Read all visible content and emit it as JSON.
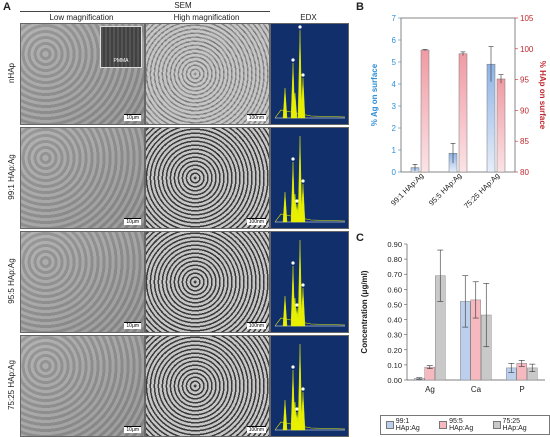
{
  "panel_a": {
    "letter": "A",
    "sem_header": "SEM",
    "col_headers": [
      "Low magnification",
      "High magnification",
      "EDX"
    ],
    "rows": [
      {
        "label": "nHAp",
        "sb_low": "10μm",
        "sb_high": "100nm",
        "inset": "PMMA"
      },
      {
        "label": "99:1 HAp:Ag",
        "sb_low": "10μm",
        "sb_high": "100nm"
      },
      {
        "label": "95:5 HAp:Ag",
        "sb_low": "10μm",
        "sb_high": "100nm"
      },
      {
        "label": "75:25 HAp:Ag",
        "sb_low": "10μm",
        "sb_high": "100nm"
      }
    ]
  },
  "panel_b": {
    "letter": "B"
  },
  "panel_c": {
    "letter": "C"
  },
  "colors": {
    "ag_axis": "#2f8fd8",
    "hap_axis": "#c0282f",
    "s1": "#bcd0ee",
    "s2": "#f5b9bf",
    "s3": "#c9c9c9",
    "edx_bg": "#11306b",
    "edx_peak": "#e8f000"
  },
  "chart_data": [
    {
      "type": "bar",
      "categories": [
        "99:1 HAp:Ag",
        "95:5 HAp:Ag",
        "75:25 HAp:Ag"
      ],
      "ylabel": "% Ag on surface",
      "y2label": "% HAp on surface",
      "ylim": [
        0,
        7
      ],
      "y2lim": [
        80,
        105
      ],
      "yticks": [
        0,
        1,
        2,
        3,
        4,
        5,
        6,
        7
      ],
      "y2ticks": [
        80,
        85,
        90,
        95,
        100,
        105
      ],
      "series": [
        {
          "axis": "left",
          "values": [
            0.2,
            0.85,
            4.9
          ],
          "errors": [
            0.15,
            0.45,
            0.8
          ]
        },
        {
          "axis": "right",
          "values": [
            99.8,
            99.2,
            95.1
          ],
          "errors": [
            0.1,
            0.3,
            0.7
          ]
        }
      ]
    },
    {
      "type": "bar",
      "categories": [
        "Ag",
        "Ca",
        "P"
      ],
      "ylabel": "Concentration (μg/ml)",
      "ylim": [
        0,
        0.9
      ],
      "yticks": [
        "0.00",
        "0.10",
        "0.20",
        "0.30",
        "0.40",
        "0.50",
        "0.60",
        "0.70",
        "0.80",
        "0.90"
      ],
      "legend": [
        "99:1 HAp:Ag",
        "95:5 HAp:Ag",
        "75:25 HAp:Ag"
      ],
      "series": [
        {
          "name": "99:1 HAp:Ag",
          "values": [
            0.01,
            0.52,
            0.08
          ],
          "errors": [
            0.005,
            0.17,
            0.03
          ]
        },
        {
          "name": "95:5 HAp:Ag",
          "values": [
            0.085,
            0.53,
            0.11
          ],
          "errors": [
            0.01,
            0.12,
            0.02
          ]
        },
        {
          "name": "75:25 HAp:Ag",
          "values": [
            0.69,
            0.43,
            0.08
          ],
          "errors": [
            0.17,
            0.21,
            0.025
          ]
        }
      ]
    }
  ]
}
